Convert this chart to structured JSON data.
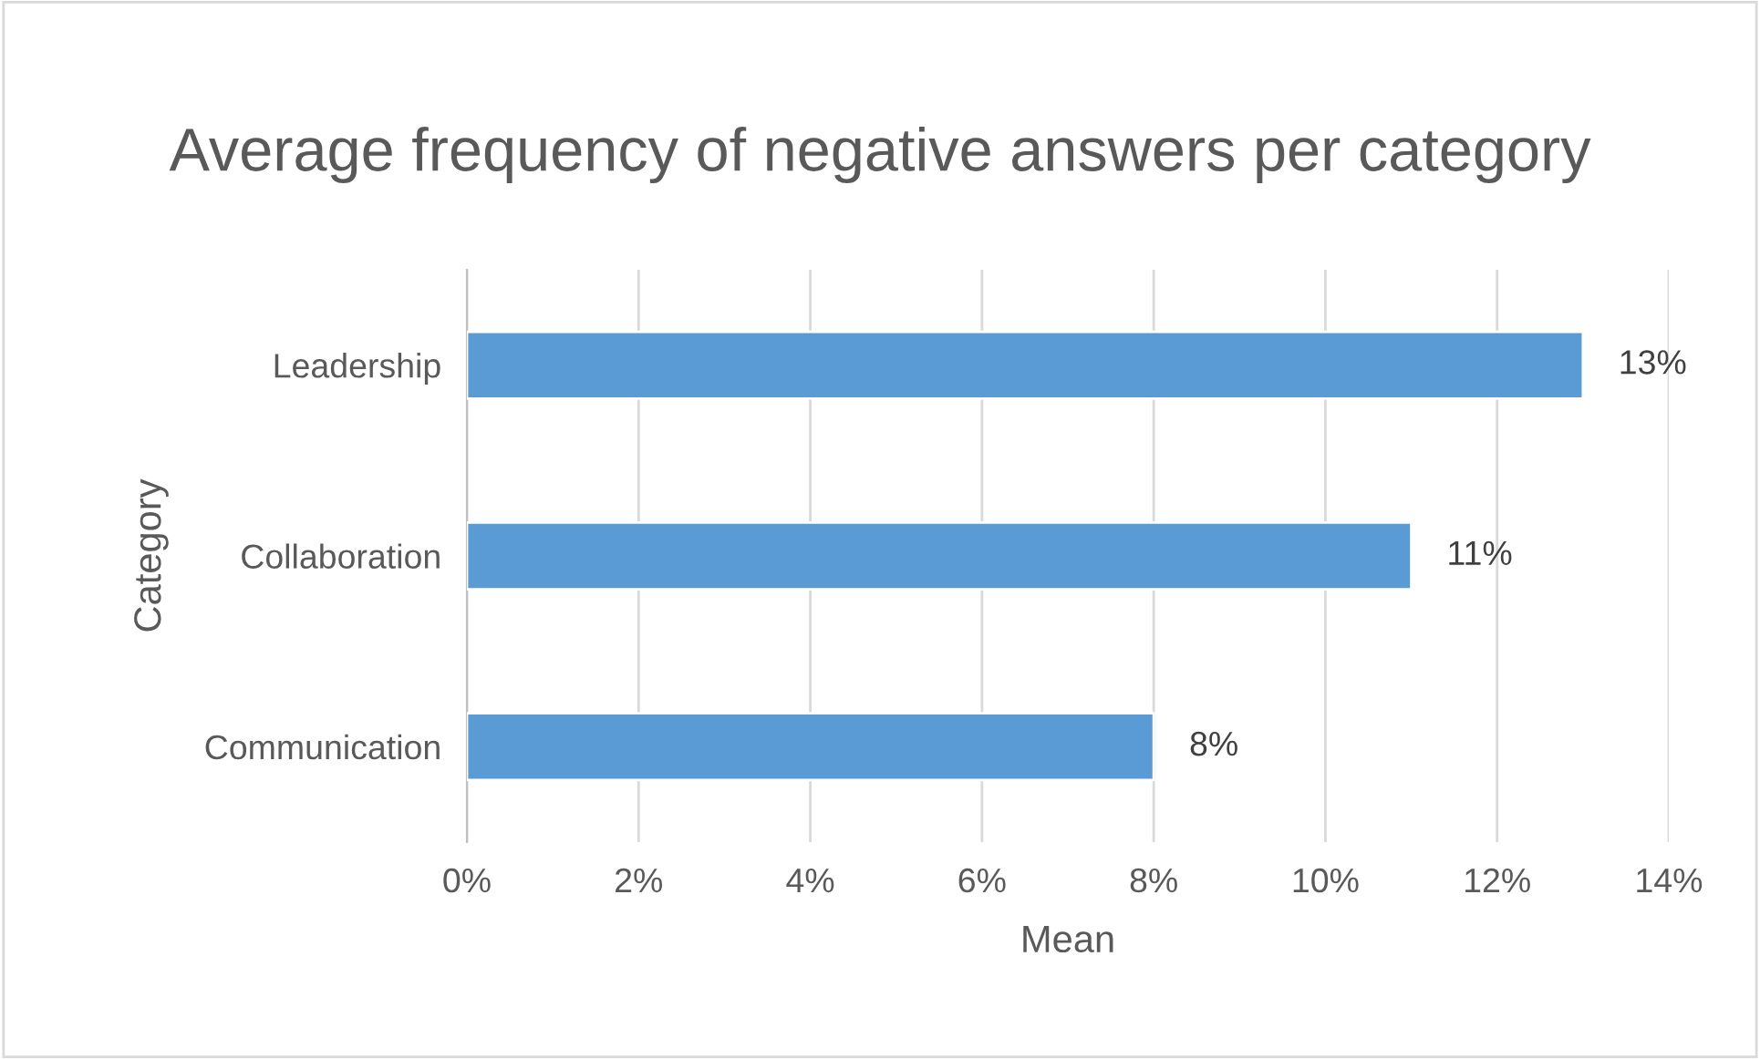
{
  "chart_data": {
    "type": "bar",
    "orientation": "horizontal",
    "title": "Average frequency of negative answers per category",
    "xlabel": "Mean",
    "ylabel": "Category",
    "categories": [
      "Leadership",
      "Collaboration",
      "Communication"
    ],
    "values": [
      13,
      11,
      8
    ],
    "color": "#5b9bd5",
    "value_labels": [
      "13%",
      "11%",
      "8%"
    ],
    "xlim": [
      0,
      14
    ],
    "xticks": [
      {
        "value": 0,
        "label": "0%"
      },
      {
        "value": 2,
        "label": "2%"
      },
      {
        "value": 4,
        "label": "4%"
      },
      {
        "value": 6,
        "label": "6%"
      },
      {
        "value": 8,
        "label": "8%"
      },
      {
        "value": 10,
        "label": "10%"
      },
      {
        "value": 12,
        "label": "12%"
      },
      {
        "value": 14,
        "label": "14%"
      }
    ],
    "grid": "x",
    "legend": false
  }
}
